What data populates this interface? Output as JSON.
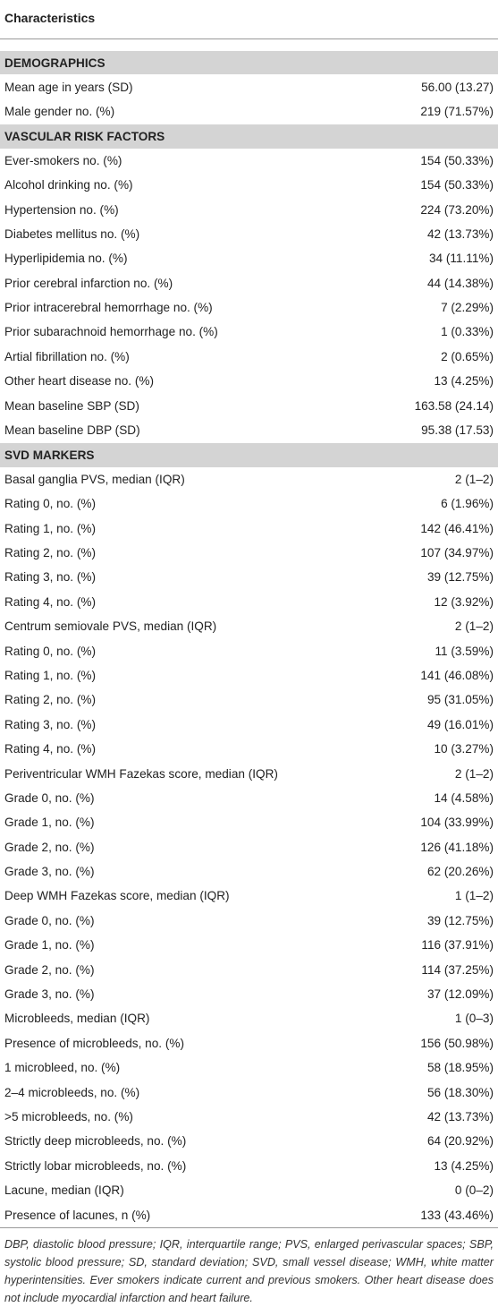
{
  "table": {
    "header": "Characteristics",
    "sections": [
      {
        "title": "DEMOGRAPHICS",
        "rows": [
          [
            "Mean age in years (SD)",
            "56.00 (13.27)"
          ],
          [
            "Male gender no. (%)",
            "219 (71.57%)"
          ]
        ]
      },
      {
        "title": "VASCULAR RISK FACTORS",
        "rows": [
          [
            "Ever-smokers no. (%)",
            "154 (50.33%)"
          ],
          [
            "Alcohol drinking no. (%)",
            "154 (50.33%)"
          ],
          [
            "Hypertension no. (%)",
            "224 (73.20%)"
          ],
          [
            "Diabetes mellitus no. (%)",
            "42 (13.73%)"
          ],
          [
            "Hyperlipidemia no. (%)",
            "34 (11.11%)"
          ],
          [
            "Prior cerebral infarction no. (%)",
            "44 (14.38%)"
          ],
          [
            "Prior intracerebral hemorrhage no. (%)",
            "7 (2.29%)"
          ],
          [
            "Prior subarachnoid hemorrhage no. (%)",
            "1 (0.33%)"
          ],
          [
            "Artial fibrillation no. (%)",
            "2 (0.65%)"
          ],
          [
            "Other heart disease no. (%)",
            "13 (4.25%)"
          ],
          [
            "Mean baseline SBP (SD)",
            "163.58 (24.14)"
          ],
          [
            "Mean baseline DBP (SD)",
            "95.38 (17.53)"
          ]
        ]
      },
      {
        "title": "SVD MARKERS",
        "rows": [
          [
            "Basal ganglia PVS, median (IQR)",
            "2 (1–2)"
          ],
          [
            "Rating 0, no. (%)",
            "6 (1.96%)"
          ],
          [
            "Rating 1, no. (%)",
            "142 (46.41%)"
          ],
          [
            "Rating 2, no. (%)",
            "107 (34.97%)"
          ],
          [
            "Rating 3, no. (%)",
            "39 (12.75%)"
          ],
          [
            "Rating 4, no. (%)",
            "12 (3.92%)"
          ],
          [
            "Centrum semiovale PVS, median (IQR)",
            "2 (1–2)"
          ],
          [
            "Rating 0, no. (%)",
            "11 (3.59%)"
          ],
          [
            "Rating 1, no. (%)",
            "141 (46.08%)"
          ],
          [
            "Rating 2, no. (%)",
            "95 (31.05%)"
          ],
          [
            "Rating 3, no. (%)",
            "49 (16.01%)"
          ],
          [
            "Rating 4, no. (%)",
            "10 (3.27%)"
          ],
          [
            "Periventricular WMH Fazekas score, median (IQR)",
            "2 (1–2)"
          ],
          [
            "Grade 0, no. (%)",
            "14 (4.58%)"
          ],
          [
            "Grade 1, no. (%)",
            "104 (33.99%)"
          ],
          [
            "Grade 2, no. (%)",
            "126 (41.18%)"
          ],
          [
            "Grade 3, no. (%)",
            "62 (20.26%)"
          ],
          [
            "Deep WMH Fazekas score, median (IQR)",
            "1 (1–2)"
          ],
          [
            "Grade 0, no. (%)",
            "39 (12.75%)"
          ],
          [
            "Grade 1, no. (%)",
            "116 (37.91%)"
          ],
          [
            "Grade 2, no. (%)",
            "114 (37.25%)"
          ],
          [
            "Grade 3, no. (%)",
            "37 (12.09%)"
          ],
          [
            "Microbleeds, median (IQR)",
            "1 (0–3)"
          ],
          [
            "Presence of microbleeds, no. (%)",
            "156 (50.98%)"
          ],
          [
            "1 microbleed, no. (%)",
            "58 (18.95%)"
          ],
          [
            "2–4 microbleeds, no. (%)",
            "56 (18.30%)"
          ],
          [
            ">5 microbleeds, no. (%)",
            "42 (13.73%)"
          ],
          [
            "Strictly deep microbleeds, no. (%)",
            "64 (20.92%)"
          ],
          [
            "Strictly lobar microbleeds, no. (%)",
            "13 (4.25%)"
          ],
          [
            "Lacune, median (IQR)",
            "0 (0–2)"
          ],
          [
            "Presence of lacunes, n (%)",
            "133 (43.46%)"
          ]
        ]
      }
    ],
    "footnote": "DBP, diastolic blood pressure; IQR, interquartile range; PVS, enlarged perivascular spaces; SBP, systolic blood pressure; SD, standard deviation; SVD, small vessel disease; WMH, white matter hyperintensities. Ever smokers indicate current and previous smokers. Other heart disease does not include myocardial infarction and heart failure."
  }
}
